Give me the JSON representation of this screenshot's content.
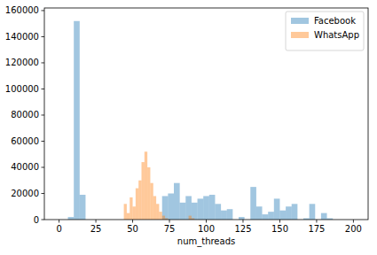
{
  "chart_data": {
    "type": "histogram",
    "x_label": "num_threads",
    "xlim": [
      -10,
      210
    ],
    "xticks": [
      0,
      25,
      50,
      75,
      100,
      125,
      150,
      175,
      200
    ],
    "ylim": [
      0,
      162000
    ],
    "yticks": [
      0,
      20000,
      40000,
      60000,
      80000,
      100000,
      120000,
      140000,
      160000
    ],
    "grid": false,
    "legend": "upper right",
    "series": [
      {
        "name": "Facebook",
        "color": "#1f77b4",
        "bins": [
          6,
          10,
          14,
          18,
          22,
          26,
          30,
          34,
          38,
          42,
          46,
          50,
          54,
          58,
          62,
          66,
          70,
          74,
          78,
          82,
          86,
          90,
          94,
          98,
          102,
          106,
          110,
          114,
          118,
          122,
          126,
          130,
          134,
          138,
          142,
          146,
          150,
          154,
          158,
          162,
          166,
          170,
          174,
          178,
          182,
          186,
          190,
          194
        ],
        "values": [
          2000,
          152000,
          19000,
          0,
          0,
          0,
          0,
          0,
          0,
          0,
          0,
          0,
          0,
          0,
          0,
          0,
          18000,
          20000,
          28000,
          13000,
          18000,
          13000,
          16000,
          18000,
          19000,
          12000,
          7000,
          8000,
          0,
          2000,
          0,
          25000,
          10000,
          4000,
          6000,
          16000,
          7000,
          10000,
          12000,
          0,
          1000,
          12000,
          0,
          5000,
          1000,
          0,
          0
        ]
      },
      {
        "name": "WhatsApp",
        "color": "#ff7f0e",
        "bins": [
          44,
          46,
          48,
          50,
          52,
          54,
          56,
          58,
          60,
          62,
          64,
          66,
          68,
          70,
          72,
          74,
          76,
          78,
          80,
          82,
          84,
          86,
          88,
          90,
          92
        ],
        "values": [
          12000,
          5000,
          17000,
          10000,
          24000,
          30000,
          44000,
          52000,
          40000,
          28000,
          18000,
          12000,
          6000,
          3000,
          1000,
          0,
          0,
          0,
          0,
          0,
          0,
          0,
          3000,
          1000
        ]
      }
    ]
  }
}
